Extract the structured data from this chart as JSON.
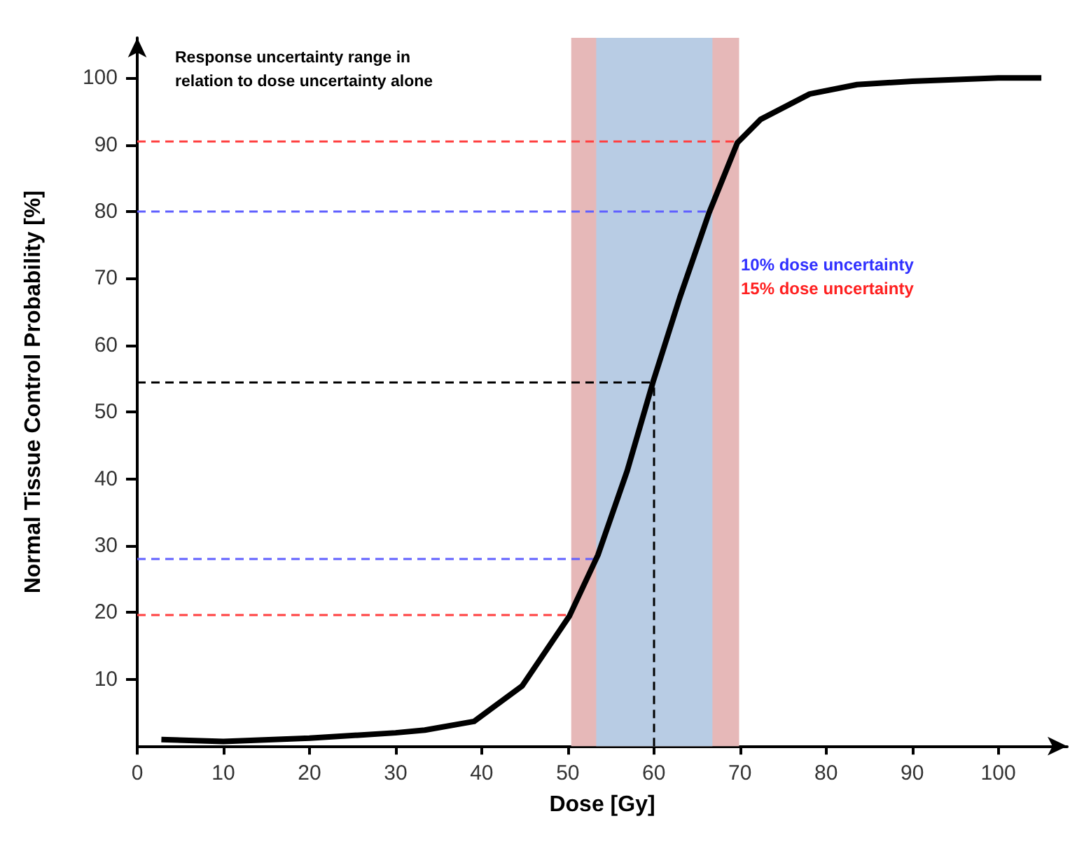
{
  "chart_data": {
    "type": "line",
    "xlabel": "Dose [Gy]",
    "ylabel": "Normal Tissue Control Probability [%]",
    "annotations": [
      "Response uncertainty range in\nrelation to dose uncertainty alone"
    ],
    "xlim": [
      0,
      108
    ],
    "xticks": [
      0,
      10,
      20,
      30,
      40,
      50,
      60,
      70,
      80,
      90,
      100
    ],
    "ylim": [
      0,
      106
    ],
    "yticks": [
      10,
      20,
      30,
      40,
      50,
      60,
      70,
      80,
      90,
      100
    ],
    "grid": false,
    "series": [
      {
        "color": "#000000",
        "x": [
          2.8,
          10,
          20,
          30,
          33.4,
          39.1,
          44.7,
          50.2,
          53.5,
          56.9,
          59.9,
          63.0,
          66.4,
          69.7,
          72.4,
          78.1,
          83.6,
          90,
          100,
          105
        ],
        "values": [
          1,
          0.7,
          1.2,
          2,
          2.4,
          3.7,
          9,
          19.5,
          28.6,
          41.2,
          54.5,
          67.1,
          79.8,
          90.3,
          93.8,
          97.6,
          99,
          99.5,
          100,
          100
        ]
      }
    ],
    "bands": [
      {
        "axis": "x",
        "from": 50.4,
        "to": 69.9,
        "label": "15% dose uncertainty",
        "color": "#e6b8b8"
      },
      {
        "axis": "x",
        "from": 53.3,
        "to": 66.8,
        "label": "10% dose uncertainty",
        "color": "#b8cce4"
      }
    ],
    "ref_lines": [
      {
        "axis": "y",
        "value": 90.5,
        "color": "#ff4040",
        "line_style": "dashed"
      },
      {
        "axis": "y",
        "value": 80,
        "color": "#6060ff",
        "line_style": "dashed"
      },
      {
        "axis": "y",
        "value": 54.5,
        "color": "#000000",
        "line_style": "dashed"
      },
      {
        "axis": "y",
        "value": 28,
        "color": "#6060ff",
        "line_style": "dashed"
      },
      {
        "axis": "y",
        "value": 19.7,
        "color": "#ff4040",
        "line_style": "dashed"
      },
      {
        "axis": "x",
        "value": 60,
        "color": "#000000",
        "line_style": "dashed"
      }
    ]
  }
}
